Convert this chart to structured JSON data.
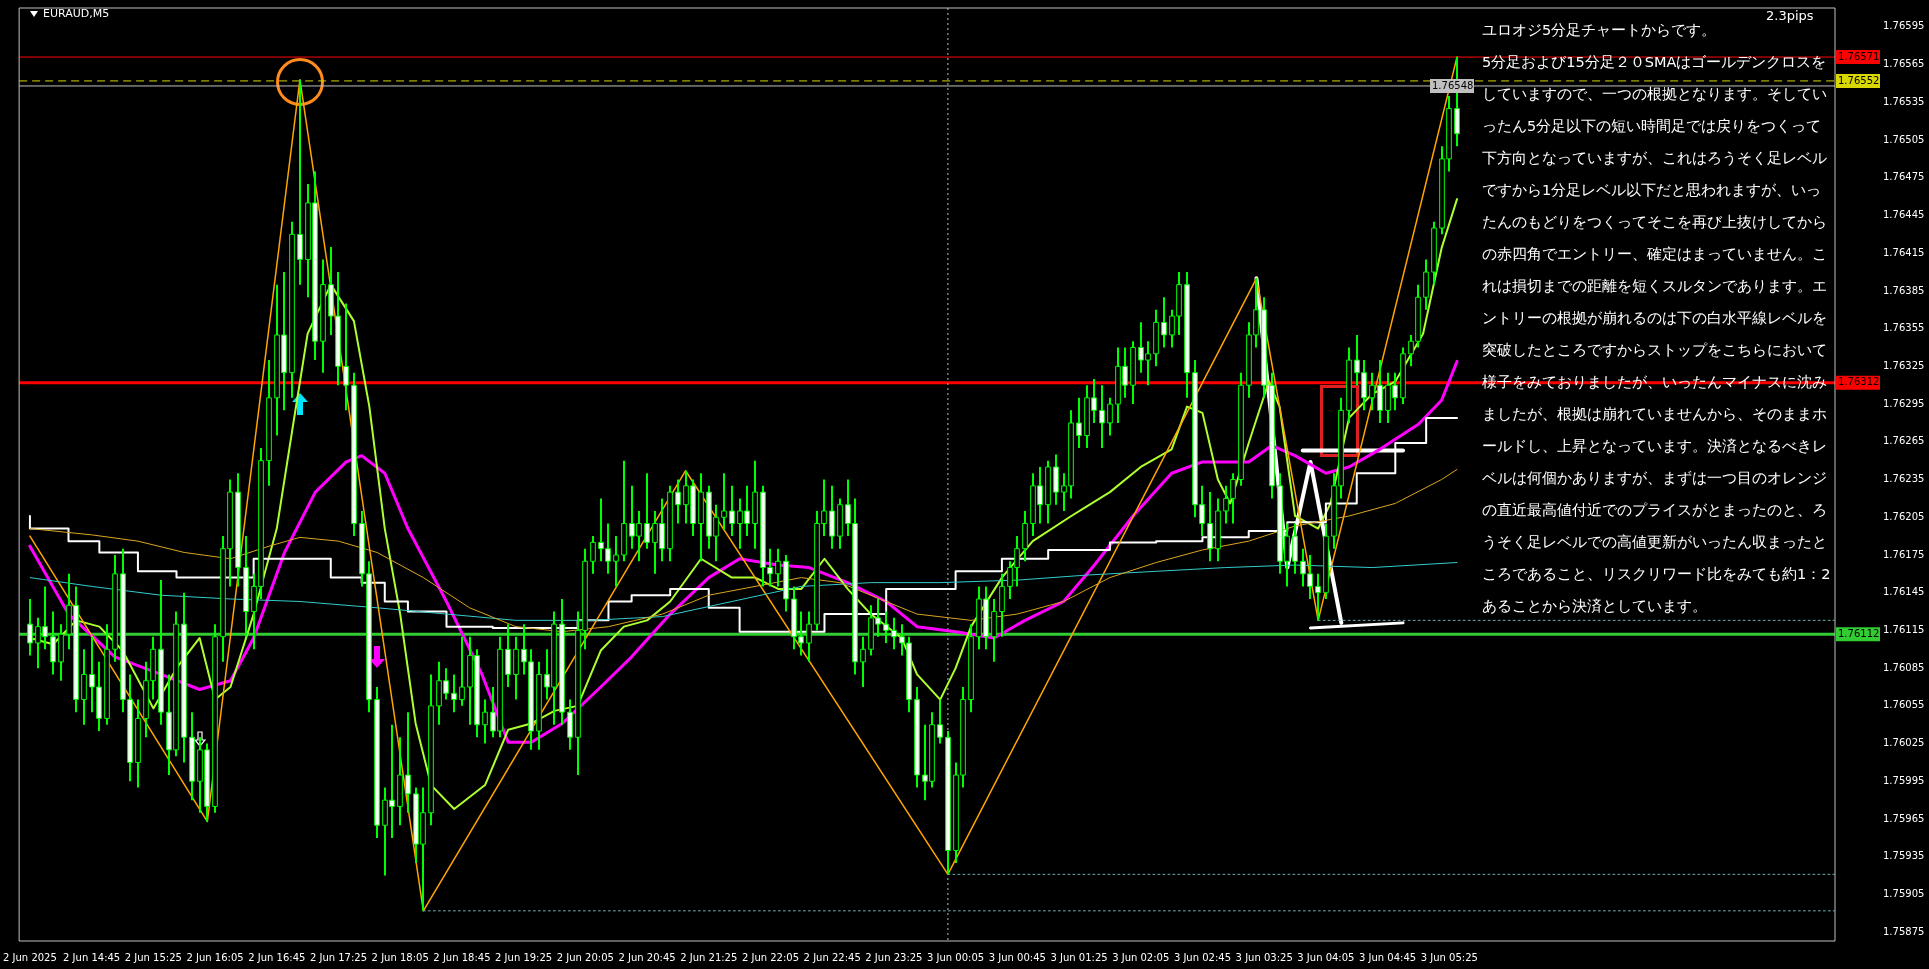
{
  "chart_data": {
    "type": "candlestick",
    "title": "EURAUD,M5",
    "annotations": [
      "2.3pips",
      "ユロオジ5分足チャートからです。",
      "5分足および15分足２０SMAはゴールデンクロスをしていますので、一つの根拠となります。そしていったん5分足以下の短い時間足では戻りをつくって下方向となっていますが、これはろうそく足レベルですから1分足レベル以下だと思われますが、いったんのもどりをつくってそこを再び上抜けしてからの赤四角でエントリー、確定はまっていません。これは損切までの距離を短くスルタンであります。エントリーの根拠が崩れるのは下の白水平線レベルを突破したところですからストップをこちらにおいて様子をみておりましたが、いったんマイナスに沈みましたが、根拠は崩れていませんから、そのままホールドし、上昇となっています。決済となるべきレベルは何個かありますが、まずは一つ目のオレンジの直近最高値付近でのプライスがとまったのと、ろうそく足レベルでの高値更新がいったん収まったところであること、リスクリワード比をみても約1：2あることから決済としています。"
    ],
    "xlim": [
      "2025-06-02T13:58",
      "2025-06-03T09:35"
    ],
    "ylim": [
      1.75868,
      1.7661
    ],
    "xticks": [
      {
        "value": "2025-06-02T14:05",
        "label": "2 Jun 2025"
      },
      {
        "value": "2025-06-02T14:45",
        "label": "2 Jun 14:45"
      },
      {
        "value": "2025-06-02T15:25",
        "label": "2 Jun 15:25"
      },
      {
        "value": "2025-06-02T16:05",
        "label": "2 Jun 16:05"
      },
      {
        "value": "2025-06-02T16:45",
        "label": "2 Jun 16:45"
      },
      {
        "value": "2025-06-02T17:25",
        "label": "2 Jun 17:25"
      },
      {
        "value": "2025-06-02T18:05",
        "label": "2 Jun 18:05"
      },
      {
        "value": "2025-06-02T18:45",
        "label": "2 Jun 18:45"
      },
      {
        "value": "2025-06-02T19:25",
        "label": "2 Jun 19:25"
      },
      {
        "value": "2025-06-02T20:05",
        "label": "2 Jun 20:05"
      },
      {
        "value": "2025-06-02T20:45",
        "label": "2 Jun 20:45"
      },
      {
        "value": "2025-06-02T21:25",
        "label": "2 Jun 21:25"
      },
      {
        "value": "2025-06-02T22:05",
        "label": "2 Jun 22:05"
      },
      {
        "value": "2025-06-02T22:45",
        "label": "2 Jun 22:45"
      },
      {
        "value": "2025-06-02T23:25",
        "label": "2 Jun 23:25"
      },
      {
        "value": "2025-06-03T00:05",
        "label": "3 Jun 00:05"
      },
      {
        "value": "2025-06-03T00:45",
        "label": "3 Jun 00:45"
      },
      {
        "value": "2025-06-03T01:25",
        "label": "3 Jun 01:25"
      },
      {
        "value": "2025-06-03T02:05",
        "label": "3 Jun 02:05"
      },
      {
        "value": "2025-06-03T02:45",
        "label": "3 Jun 02:45"
      },
      {
        "value": "2025-06-03T03:25",
        "label": "3 Jun 03:25"
      },
      {
        "value": "2025-06-03T04:05",
        "label": "3 Jun 04:05"
      },
      {
        "value": "2025-06-03T04:45",
        "label": "3 Jun 04:45"
      },
      {
        "value": "2025-06-03T05:25",
        "label": "3 Jun 05:25"
      }
    ],
    "yticks": [
      1.75875,
      1.75905,
      1.75935,
      1.75965,
      1.75995,
      1.76025,
      1.76055,
      1.76085,
      1.76115,
      1.76145,
      1.76175,
      1.76205,
      1.76235,
      1.76265,
      1.76295,
      1.76325,
      1.76355,
      1.76385,
      1.76415,
      1.76445,
      1.76475,
      1.76505,
      1.76535,
      1.76565,
      1.76595
    ],
    "ref_lines": [
      {
        "axis": "y",
        "value": 1.76571,
        "label": "1.76571",
        "color": "#ff0000",
        "line_style": "solid"
      },
      {
        "axis": "y",
        "value": 1.76552,
        "label": "1.76552",
        "color": "#d8d800",
        "line_style": "dashed"
      },
      {
        "axis": "y",
        "value": 1.76548,
        "label": "1.76548",
        "color": "#c0c0c0",
        "line_style": "solid"
      },
      {
        "axis": "y",
        "value": 1.76312,
        "label": "1.76312",
        "color": "#ff0000",
        "line_style": "solid"
      },
      {
        "axis": "y",
        "value": 1.76112,
        "label": "1.76112",
        "color": "#32cd32",
        "line_style": "solid"
      },
      {
        "axis": "x",
        "value": "2025-06-03T00:00",
        "color": "#c0c0c0",
        "line_style": "dotted"
      }
    ],
    "x": [
      "2025-06-02T14:05",
      "2025-06-02T14:10",
      "2025-06-02T14:15",
      "2025-06-02T14:20",
      "2025-06-02T14:25",
      "2025-06-02T14:30",
      "2025-06-02T14:35",
      "2025-06-02T14:40",
      "2025-06-02T14:45",
      "2025-06-02T14:50",
      "2025-06-02T14:55",
      "2025-06-02T15:00",
      "2025-06-02T15:05",
      "2025-06-02T15:10",
      "2025-06-02T15:15",
      "2025-06-02T15:20",
      "2025-06-02T15:25",
      "2025-06-02T15:30",
      "2025-06-02T15:35",
      "2025-06-02T15:40",
      "2025-06-02T15:45",
      "2025-06-02T15:50",
      "2025-06-02T15:55",
      "2025-06-02T16:00",
      "2025-06-02T16:05",
      "2025-06-02T16:10",
      "2025-06-02T16:15",
      "2025-06-02T16:20",
      "2025-06-02T16:25",
      "2025-06-02T16:30",
      "2025-06-02T16:35",
      "2025-06-02T16:40",
      "2025-06-02T16:45",
      "2025-06-02T16:50",
      "2025-06-02T16:55",
      "2025-06-02T17:00",
      "2025-06-02T17:05",
      "2025-06-02T17:10",
      "2025-06-02T17:15",
      "2025-06-02T17:20",
      "2025-06-02T17:25",
      "2025-06-02T17:30",
      "2025-06-02T17:35",
      "2025-06-02T17:40",
      "2025-06-02T17:45",
      "2025-06-02T17:50",
      "2025-06-02T17:55",
      "2025-06-02T18:00",
      "2025-06-02T18:05",
      "2025-06-02T18:10",
      "2025-06-02T18:15",
      "2025-06-02T18:20",
      "2025-06-02T18:25",
      "2025-06-02T18:30",
      "2025-06-02T18:35",
      "2025-06-02T18:40",
      "2025-06-02T18:45",
      "2025-06-02T18:50",
      "2025-06-02T18:55",
      "2025-06-02T19:00",
      "2025-06-02T19:05",
      "2025-06-02T19:10",
      "2025-06-02T19:15",
      "2025-06-02T19:20",
      "2025-06-02T19:25",
      "2025-06-02T19:30",
      "2025-06-02T19:35",
      "2025-06-02T19:40",
      "2025-06-02T19:45",
      "2025-06-02T19:50",
      "2025-06-02T19:55",
      "2025-06-02T20:00",
      "2025-06-02T20:05",
      "2025-06-02T20:10",
      "2025-06-02T20:15",
      "2025-06-02T20:20",
      "2025-06-02T20:25",
      "2025-06-02T20:30",
      "2025-06-02T20:35",
      "2025-06-02T20:40",
      "2025-06-02T20:45",
      "2025-06-02T20:50",
      "2025-06-02T20:55",
      "2025-06-02T21:00",
      "2025-06-02T21:05",
      "2025-06-02T21:10",
      "2025-06-02T21:15",
      "2025-06-02T21:20",
      "2025-06-02T21:25",
      "2025-06-02T21:30",
      "2025-06-02T21:35",
      "2025-06-02T21:40",
      "2025-06-02T21:45",
      "2025-06-02T21:50",
      "2025-06-02T21:55",
      "2025-06-02T22:00",
      "2025-06-02T22:05",
      "2025-06-02T22:10",
      "2025-06-02T22:15",
      "2025-06-02T22:20",
      "2025-06-02T22:25",
      "2025-06-02T22:30",
      "2025-06-02T22:35",
      "2025-06-02T22:40",
      "2025-06-02T22:45",
      "2025-06-02T22:50",
      "2025-06-02T22:55",
      "2025-06-02T23:00",
      "2025-06-02T23:05",
      "2025-06-02T23:10",
      "2025-06-02T23:15",
      "2025-06-02T23:20",
      "2025-06-02T23:25",
      "2025-06-02T23:30",
      "2025-06-02T23:35",
      "2025-06-02T23:40",
      "2025-06-02T23:45",
      "2025-06-02T23:50",
      "2025-06-02T23:55",
      "2025-06-03T00:00",
      "2025-06-03T00:05",
      "2025-06-03T00:10",
      "2025-06-03T00:15",
      "2025-06-03T00:20",
      "2025-06-03T00:25",
      "2025-06-03T00:30",
      "2025-06-03T00:35",
      "2025-06-03T00:40",
      "2025-06-03T00:45",
      "2025-06-03T00:50",
      "2025-06-03T00:55",
      "2025-06-03T01:00",
      "2025-06-03T01:05",
      "2025-06-03T01:10",
      "2025-06-03T01:15",
      "2025-06-03T01:20",
      "2025-06-03T01:25",
      "2025-06-03T01:30",
      "2025-06-03T01:35",
      "2025-06-03T01:40",
      "2025-06-03T01:45",
      "2025-06-03T01:50",
      "2025-06-03T01:55",
      "2025-06-03T02:00",
      "2025-06-03T02:05",
      "2025-06-03T02:10",
      "2025-06-03T02:15",
      "2025-06-03T02:20",
      "2025-06-03T02:25",
      "2025-06-03T02:30",
      "2025-06-03T02:35",
      "2025-06-03T02:40",
      "2025-06-03T02:45",
      "2025-06-03T02:50",
      "2025-06-03T02:55",
      "2025-06-03T03:00",
      "2025-06-03T03:05",
      "2025-06-03T03:10",
      "2025-06-03T03:15",
      "2025-06-03T03:20",
      "2025-06-03T03:25",
      "2025-06-03T03:30",
      "2025-06-03T03:35",
      "2025-06-03T03:40",
      "2025-06-03T03:45",
      "2025-06-03T03:50",
      "2025-06-03T03:55",
      "2025-06-03T04:00",
      "2025-06-03T04:05",
      "2025-06-03T04:10",
      "2025-06-03T04:15",
      "2025-06-03T04:20",
      "2025-06-03T04:25",
      "2025-06-03T04:30",
      "2025-06-03T04:35",
      "2025-06-03T04:40",
      "2025-06-03T04:45",
      "2025-06-03T04:50",
      "2025-06-03T04:55",
      "2025-06-03T05:00",
      "2025-06-03T05:05",
      "2025-06-03T05:10",
      "2025-06-03T05:15",
      "2025-06-03T05:20",
      "2025-06-03T05:25",
      "2025-06-03T05:30"
    ],
    "ohlc": [
      [
        1.7612,
        1.7614,
        1.76095,
        1.76105
      ],
      [
        1.76105,
        1.76125,
        1.76085,
        1.76118
      ],
      [
        1.76118,
        1.7615,
        1.761,
        1.7611
      ],
      [
        1.7611,
        1.7613,
        1.7608,
        1.7609
      ],
      [
        1.7609,
        1.7612,
        1.76075,
        1.76112
      ],
      [
        1.76112,
        1.7616,
        1.761,
        1.76135
      ],
      [
        1.76135,
        1.7615,
        1.7605,
        1.7606
      ],
      [
        1.7606,
        1.761,
        1.7604,
        1.7608
      ],
      [
        1.7608,
        1.7611,
        1.7605,
        1.7607
      ],
      [
        1.7607,
        1.7609,
        1.76035,
        1.76045
      ],
      [
        1.76045,
        1.7612,
        1.7604,
        1.761
      ],
      [
        1.761,
        1.76175,
        1.7609,
        1.7616
      ],
      [
        1.7616,
        1.7618,
        1.7605,
        1.7606
      ],
      [
        1.7606,
        1.7608,
        1.75995,
        1.7601
      ],
      [
        1.7601,
        1.7606,
        1.7599,
        1.76045
      ],
      [
        1.76045,
        1.7609,
        1.7603,
        1.76075
      ],
      [
        1.76075,
        1.7611,
        1.7606,
        1.761
      ],
      [
        1.761,
        1.76155,
        1.7604,
        1.7605
      ],
      [
        1.7605,
        1.7608,
        1.76,
        1.7602
      ],
      [
        1.7602,
        1.7613,
        1.76015,
        1.7612
      ],
      [
        1.7612,
        1.76145,
        1.7601,
        1.7603
      ],
      [
        1.7603,
        1.7605,
        1.7598,
        1.75995
      ],
      [
        1.75995,
        1.7603,
        1.7597,
        1.7602
      ],
      [
        1.7602,
        1.76025,
        1.75963,
        1.75975
      ],
      [
        1.75975,
        1.7612,
        1.7597,
        1.7611
      ],
      [
        1.7611,
        1.7619,
        1.7609,
        1.7618
      ],
      [
        1.7618,
        1.76235,
        1.7615,
        1.76225
      ],
      [
        1.76225,
        1.7624,
        1.7615,
        1.76165
      ],
      [
        1.76165,
        1.7619,
        1.7611,
        1.7613
      ],
      [
        1.7613,
        1.7616,
        1.761,
        1.7615
      ],
      [
        1.7615,
        1.7626,
        1.7614,
        1.7625
      ],
      [
        1.7625,
        1.7633,
        1.7623,
        1.763
      ],
      [
        1.763,
        1.7639,
        1.7627,
        1.7635
      ],
      [
        1.7635,
        1.764,
        1.7629,
        1.7632
      ],
      [
        1.7632,
        1.7644,
        1.763,
        1.7643
      ],
      [
        1.7643,
        1.76553,
        1.7639,
        1.7641
      ],
      [
        1.7641,
        1.7647,
        1.7638,
        1.76455
      ],
      [
        1.76455,
        1.7648,
        1.7633,
        1.76345
      ],
      [
        1.76345,
        1.7641,
        1.7632,
        1.7639
      ],
      [
        1.7639,
        1.7642,
        1.7635,
        1.76365
      ],
      [
        1.76365,
        1.764,
        1.7631,
        1.76325
      ],
      [
        1.76325,
        1.76375,
        1.7629,
        1.7631
      ],
      [
        1.7631,
        1.7632,
        1.7619,
        1.762
      ],
      [
        1.762,
        1.7621,
        1.7615,
        1.7616
      ],
      [
        1.7616,
        1.7617,
        1.7605,
        1.7606
      ],
      [
        1.7606,
        1.7607,
        1.7595,
        1.7596
      ],
      [
        1.7596,
        1.7599,
        1.7592,
        1.7598
      ],
      [
        1.7598,
        1.7604,
        1.7595,
        1.75975
      ],
      [
        1.75975,
        1.7603,
        1.7596,
        1.76
      ],
      [
        1.76,
        1.7605,
        1.7597,
        1.75985
      ],
      [
        1.75985,
        1.7599,
        1.7593,
        1.75945
      ],
      [
        1.75945,
        1.7599,
        1.75892,
        1.7597
      ],
      [
        1.7597,
        1.7608,
        1.7596,
        1.76055
      ],
      [
        1.76055,
        1.7609,
        1.7604,
        1.76075
      ],
      [
        1.76075,
        1.76085,
        1.7606,
        1.76065
      ],
      [
        1.76065,
        1.7608,
        1.7605,
        1.7606
      ],
      [
        1.7606,
        1.7611,
        1.76055,
        1.7607
      ],
      [
        1.7607,
        1.7611,
        1.7604,
        1.76095
      ],
      [
        1.76095,
        1.761,
        1.7603,
        1.7604
      ],
      [
        1.7604,
        1.7606,
        1.76025,
        1.7605
      ],
      [
        1.7605,
        1.7607,
        1.7603,
        1.76035
      ],
      [
        1.76035,
        1.7611,
        1.7603,
        1.761
      ],
      [
        1.761,
        1.7612,
        1.7607,
        1.7608
      ],
      [
        1.7608,
        1.7611,
        1.7606,
        1.761
      ],
      [
        1.761,
        1.7612,
        1.7608,
        1.7609
      ],
      [
        1.7609,
        1.761,
        1.7602,
        1.76035
      ],
      [
        1.76035,
        1.7609,
        1.7602,
        1.7608
      ],
      [
        1.7608,
        1.761,
        1.7606,
        1.7607
      ],
      [
        1.7607,
        1.7613,
        1.7604,
        1.7612
      ],
      [
        1.7612,
        1.7614,
        1.7604,
        1.7605
      ],
      [
        1.7605,
        1.7606,
        1.7602,
        1.7603
      ],
      [
        1.7603,
        1.7613,
        1.76,
        1.76115
      ],
      [
        1.76115,
        1.7618,
        1.761,
        1.7617
      ],
      [
        1.7617,
        1.7619,
        1.7616,
        1.76185
      ],
      [
        1.76185,
        1.7622,
        1.7617,
        1.7618
      ],
      [
        1.7618,
        1.762,
        1.7616,
        1.7617
      ],
      [
        1.7617,
        1.7619,
        1.7615,
        1.76175
      ],
      [
        1.76175,
        1.7625,
        1.7617,
        1.762
      ],
      [
        1.762,
        1.7623,
        1.7618,
        1.7619
      ],
      [
        1.7619,
        1.7621,
        1.7617,
        1.762
      ],
      [
        1.762,
        1.7624,
        1.7618,
        1.76185
      ],
      [
        1.76185,
        1.7621,
        1.7616,
        1.762
      ],
      [
        1.762,
        1.7622,
        1.7617,
        1.7618
      ],
      [
        1.7618,
        1.7623,
        1.7617,
        1.76225
      ],
      [
        1.76225,
        1.76235,
        1.762,
        1.76215
      ],
      [
        1.76215,
        1.76242,
        1.762,
        1.7623
      ],
      [
        1.7623,
        1.76235,
        1.7619,
        1.762
      ],
      [
        1.762,
        1.7624,
        1.7617,
        1.76225
      ],
      [
        1.76225,
        1.7623,
        1.7618,
        1.7619
      ],
      [
        1.7619,
        1.76215,
        1.7617,
        1.76205
      ],
      [
        1.76205,
        1.7624,
        1.76195,
        1.7621
      ],
      [
        1.7621,
        1.7623,
        1.7619,
        1.762
      ],
      [
        1.762,
        1.7622,
        1.7618,
        1.7621
      ],
      [
        1.7621,
        1.7623,
        1.7619,
        1.762
      ],
      [
        1.762,
        1.7625,
        1.7618,
        1.76225
      ],
      [
        1.76225,
        1.7623,
        1.7615,
        1.76165
      ],
      [
        1.76165,
        1.7618,
        1.7615,
        1.7616
      ],
      [
        1.7616,
        1.7618,
        1.7615,
        1.7617
      ],
      [
        1.7617,
        1.76175,
        1.7613,
        1.7614
      ],
      [
        1.7614,
        1.7615,
        1.761,
        1.7611
      ],
      [
        1.7611,
        1.7613,
        1.76095,
        1.76105
      ],
      [
        1.76105,
        1.7613,
        1.7609,
        1.7612
      ],
      [
        1.7612,
        1.7621,
        1.76115,
        1.762
      ],
      [
        1.762,
        1.76235,
        1.7619,
        1.7621
      ],
      [
        1.7621,
        1.7623,
        1.7618,
        1.7619
      ],
      [
        1.7619,
        1.7622,
        1.7618,
        1.76215
      ],
      [
        1.76215,
        1.76235,
        1.7619,
        1.762
      ],
      [
        1.762,
        1.7622,
        1.7608,
        1.7609
      ],
      [
        1.7609,
        1.7611,
        1.7607,
        1.761
      ],
      [
        1.761,
        1.76135,
        1.76095,
        1.76125
      ],
      [
        1.76125,
        1.7614,
        1.7611,
        1.7612
      ],
      [
        1.7612,
        1.7613,
        1.76105,
        1.76115
      ],
      [
        1.76115,
        1.76125,
        1.761,
        1.7611
      ],
      [
        1.7611,
        1.7612,
        1.76095,
        1.76105
      ],
      [
        1.76105,
        1.7611,
        1.7605,
        1.7606
      ],
      [
        1.7606,
        1.7607,
        1.7599,
        1.76
      ],
      [
        1.76,
        1.7604,
        1.7598,
        1.75995
      ],
      [
        1.75995,
        1.7605,
        1.7599,
        1.7604
      ],
      [
        1.7604,
        1.7606,
        1.76025,
        1.7603
      ],
      [
        1.7603,
        1.76035,
        1.75921,
        1.7594
      ],
      [
        1.7594,
        1.7601,
        1.7593,
        1.76
      ],
      [
        1.76,
        1.7607,
        1.7599,
        1.7606
      ],
      [
        1.7606,
        1.7612,
        1.7605,
        1.7611
      ],
      [
        1.7611,
        1.7615,
        1.761,
        1.7614
      ],
      [
        1.7614,
        1.7615,
        1.761,
        1.7611
      ],
      [
        1.7611,
        1.7614,
        1.7609,
        1.7613
      ],
      [
        1.7613,
        1.7616,
        1.7611,
        1.7615
      ],
      [
        1.7615,
        1.7617,
        1.7614,
        1.76165
      ],
      [
        1.76165,
        1.7619,
        1.7615,
        1.7618
      ],
      [
        1.7618,
        1.7621,
        1.7617,
        1.762
      ],
      [
        1.762,
        1.7624,
        1.7619,
        1.7623
      ],
      [
        1.7623,
        1.76245,
        1.762,
        1.76215
      ],
      [
        1.76215,
        1.7625,
        1.762,
        1.76245
      ],
      [
        1.76245,
        1.76255,
        1.76215,
        1.76225
      ],
      [
        1.76225,
        1.7624,
        1.7621,
        1.7623
      ],
      [
        1.7623,
        1.7629,
        1.7622,
        1.7628
      ],
      [
        1.7628,
        1.763,
        1.7626,
        1.7627
      ],
      [
        1.7627,
        1.7631,
        1.7626,
        1.763
      ],
      [
        1.763,
        1.76315,
        1.7628,
        1.7629
      ],
      [
        1.7629,
        1.7631,
        1.7626,
        1.7628
      ],
      [
        1.7628,
        1.763,
        1.7627,
        1.76295
      ],
      [
        1.76295,
        1.7634,
        1.7628,
        1.76325
      ],
      [
        1.76325,
        1.7634,
        1.763,
        1.7631
      ],
      [
        1.7631,
        1.76345,
        1.76295,
        1.7634
      ],
      [
        1.7634,
        1.7636,
        1.7632,
        1.7633
      ],
      [
        1.7633,
        1.76345,
        1.7631,
        1.76335
      ],
      [
        1.76335,
        1.7637,
        1.76325,
        1.7636
      ],
      [
        1.7636,
        1.7638,
        1.7634,
        1.7635
      ],
      [
        1.7635,
        1.7637,
        1.7634,
        1.76365
      ],
      [
        1.76365,
        1.764,
        1.7635,
        1.7639
      ],
      [
        1.7639,
        1.764,
        1.763,
        1.7632
      ],
      [
        1.7632,
        1.7633,
        1.76205,
        1.76215
      ],
      [
        1.76215,
        1.7623,
        1.7619,
        1.762
      ],
      [
        1.762,
        1.76225,
        1.7617,
        1.7618
      ],
      [
        1.7618,
        1.7622,
        1.7617,
        1.7621
      ],
      [
        1.7621,
        1.7623,
        1.762,
        1.7622
      ],
      [
        1.7622,
        1.7624,
        1.762,
        1.76235
      ],
      [
        1.76235,
        1.7632,
        1.7623,
        1.7631
      ],
      [
        1.7631,
        1.7636,
        1.763,
        1.7635
      ],
      [
        1.7635,
        1.76395,
        1.7634,
        1.7637
      ],
      [
        1.7637,
        1.7638,
        1.763,
        1.7631
      ],
      [
        1.7631,
        1.7632,
        1.7622,
        1.7623
      ],
      [
        1.7623,
        1.7624,
        1.7616,
        1.7617
      ],
      [
        1.7617,
        1.762,
        1.7615,
        1.7619
      ],
      [
        1.7619,
        1.762,
        1.7616,
        1.7617
      ],
      [
        1.7617,
        1.7618,
        1.7615,
        1.7616
      ],
      [
        1.7616,
        1.76175,
        1.7614,
        1.7615
      ],
      [
        1.7615,
        1.7616,
        1.76123,
        1.76145
      ],
      [
        1.76145,
        1.762,
        1.7614,
        1.7619
      ],
      [
        1.7619,
        1.7624,
        1.7618,
        1.7623
      ],
      [
        1.7623,
        1.763,
        1.7622,
        1.7629
      ],
      [
        1.7629,
        1.7634,
        1.7628,
        1.7633
      ],
      [
        1.7633,
        1.7635,
        1.7631,
        1.7632
      ],
      [
        1.7632,
        1.7633,
        1.7629,
        1.763
      ],
      [
        1.763,
        1.7632,
        1.7629,
        1.7631
      ],
      [
        1.7631,
        1.7633,
        1.7628,
        1.7629
      ],
      [
        1.7629,
        1.7632,
        1.7628,
        1.7631
      ],
      [
        1.7631,
        1.7632,
        1.7629,
        1.763
      ],
      [
        1.763,
        1.7634,
        1.76295,
        1.76335
      ],
      [
        1.76335,
        1.7635,
        1.76325,
        1.76345
      ],
      [
        1.76345,
        1.7639,
        1.7634,
        1.7638
      ],
      [
        1.7638,
        1.7641,
        1.7637,
        1.764
      ],
      [
        1.764,
        1.7644,
        1.7639,
        1.76435
      ],
      [
        1.76435,
        1.765,
        1.7643,
        1.7649
      ],
      [
        1.7649,
        1.7654,
        1.7648,
        1.7653
      ],
      [
        1.7653,
        1.76571,
        1.765,
        1.7651
      ]
    ],
    "series": [
      {
        "type": "line",
        "color": "#ff00ff",
        "x": [
          "2025-06-02T14:05",
          "2025-06-02T14:30",
          "2025-06-02T15:00",
          "2025-06-02T15:30",
          "2025-06-02T15:55",
          "2025-06-02T16:15",
          "2025-06-02T16:30",
          "2025-06-02T16:50",
          "2025-06-02T17:10",
          "2025-06-02T17:30",
          "2025-06-02T17:40",
          "2025-06-02T17:55",
          "2025-06-02T18:10",
          "2025-06-02T18:35",
          "2025-06-02T18:58",
          "2025-06-02T19:15",
          "2025-06-02T19:30",
          "2025-06-02T19:50",
          "2025-06-02T20:15",
          "2025-06-02T20:35",
          "2025-06-02T21:00",
          "2025-06-02T21:25",
          "2025-06-02T21:45",
          "2025-06-02T22:10",
          "2025-06-02T22:30",
          "2025-06-02T22:55",
          "2025-06-02T23:20",
          "2025-06-02T23:40",
          "2025-06-03T00:05",
          "2025-06-03T00:30",
          "2025-06-03T00:50",
          "2025-06-03T01:15",
          "2025-06-03T01:35",
          "2025-06-03T02:00",
          "2025-06-03T02:25",
          "2025-06-03T02:45",
          "2025-06-03T03:15",
          "2025-06-03T03:30",
          "2025-06-03T03:45",
          "2025-06-03T04:05",
          "2025-06-03T04:20",
          "2025-06-03T04:40",
          "2025-06-03T05:05",
          "2025-06-03T05:20",
          "2025-06-03T05:30"
        ],
        "values": [
          1.76182,
          1.76128,
          1.76094,
          1.7608,
          1.76068,
          1.76075,
          1.76109,
          1.76177,
          1.76225,
          1.76249,
          1.76254,
          1.7624,
          1.76196,
          1.76138,
          1.7608,
          1.76026,
          1.76026,
          1.76041,
          1.7607,
          1.76094,
          1.76128,
          1.76157,
          1.76172,
          1.76167,
          1.76165,
          1.76153,
          1.76138,
          1.76118,
          1.76114,
          1.76109,
          1.76123,
          1.76138,
          1.76167,
          1.76206,
          1.7624,
          1.76249,
          1.76249,
          1.76262,
          1.76254,
          1.7624,
          1.76245,
          1.76259,
          1.76279,
          1.76298,
          1.76329
        ]
      },
      {
        "type": "step",
        "color": "#ffffff",
        "x": [
          "2025-06-02T14:05",
          "2025-06-02T14:30",
          "2025-06-02T14:50",
          "2025-06-02T15:15",
          "2025-06-02T15:40",
          "2025-06-02T16:00",
          "2025-06-02T16:30",
          "2025-06-02T16:55",
          "2025-06-02T17:20",
          "2025-06-02T17:40",
          "2025-06-02T17:55",
          "2025-06-02T18:10",
          "2025-06-02T18:35",
          "2025-06-02T19:05",
          "2025-06-02T19:35",
          "2025-06-02T20:00",
          "2025-06-02T20:20",
          "2025-06-02T20:35",
          "2025-06-02T21:00",
          "2025-06-02T21:25",
          "2025-06-02T21:45",
          "2025-06-02T22:10",
          "2025-06-02T22:40",
          "2025-06-02T22:55",
          "2025-06-02T23:20",
          "2025-06-02T23:40",
          "2025-06-03T00:05",
          "2025-06-03T00:35",
          "2025-06-03T01:05",
          "2025-06-03T01:45",
          "2025-06-03T02:15",
          "2025-06-03T02:45",
          "2025-06-03T03:15",
          "2025-06-03T03:40",
          "2025-06-03T04:05",
          "2025-06-03T04:25",
          "2025-06-03T04:50",
          "2025-06-03T05:10",
          "2025-06-03T05:30"
        ],
        "values": [
          1.76206,
          1.76196,
          1.76186,
          1.76177,
          1.76162,
          1.76157,
          1.76157,
          1.76172,
          1.76172,
          1.76157,
          1.76153,
          1.76138,
          1.7613,
          1.76118,
          1.76117,
          1.76117,
          1.76123,
          1.76138,
          1.76143,
          1.76148,
          1.76133,
          1.76114,
          1.76114,
          1.76128,
          1.76128,
          1.76148,
          1.76148,
          1.76162,
          1.76172,
          1.76179,
          1.76185,
          1.76186,
          1.76189,
          1.76194,
          1.76201,
          1.76216,
          1.7624,
          1.76264,
          1.76284
        ]
      },
      {
        "type": "line",
        "color": "#daa520",
        "x": [
          "2025-06-02T14:05",
          "2025-06-02T14:45",
          "2025-06-02T15:15",
          "2025-06-02T15:45",
          "2025-06-02T16:15",
          "2025-06-02T16:40",
          "2025-06-02T17:00",
          "2025-06-02T17:25",
          "2025-06-02T17:50",
          "2025-06-02T18:20",
          "2025-06-02T18:50",
          "2025-06-02T19:20",
          "2025-06-02T19:50",
          "2025-06-02T20:20",
          "2025-06-02T20:55",
          "2025-06-02T21:25",
          "2025-06-02T21:55",
          "2025-06-02T22:25",
          "2025-06-02T22:50",
          "2025-06-02T23:10",
          "2025-06-02T23:40",
          "2025-06-03T00:15",
          "2025-06-03T00:45",
          "2025-06-03T01:15",
          "2025-06-03T01:45",
          "2025-06-03T02:15",
          "2025-06-03T02:45",
          "2025-06-03T03:15",
          "2025-06-03T03:45",
          "2025-06-03T04:20",
          "2025-06-03T04:50",
          "2025-06-03T05:20",
          "2025-06-03T05:30"
        ],
        "values": [
          1.76196,
          1.76191,
          1.76186,
          1.76177,
          1.76172,
          1.76182,
          1.76189,
          1.76186,
          1.76177,
          1.76157,
          1.76133,
          1.76118,
          1.76114,
          1.76118,
          1.76128,
          1.76143,
          1.7615,
          1.76157,
          1.76153,
          1.76143,
          1.76128,
          1.76123,
          1.76128,
          1.76138,
          1.76157,
          1.76169,
          1.76179,
          1.76186,
          1.76198,
          1.76206,
          1.76216,
          1.76235,
          1.76243
        ]
      },
      {
        "type": "line",
        "color": "#33cccc",
        "x": [
          "2025-06-02T14:05",
          "2025-06-02T14:45",
          "2025-06-02T15:30",
          "2025-06-02T16:15",
          "2025-06-02T17:00",
          "2025-06-02T17:50",
          "2025-06-02T18:35",
          "2025-06-02T19:20",
          "2025-06-02T20:08",
          "2025-06-02T20:55",
          "2025-06-02T21:40",
          "2025-06-02T22:25",
          "2025-06-02T23:10",
          "2025-06-02T23:55",
          "2025-06-03T00:45",
          "2025-06-03T01:30",
          "2025-06-03T02:15",
          "2025-06-03T03:00",
          "2025-06-03T03:45",
          "2025-06-03T04:35",
          "2025-06-03T05:30"
        ],
        "values": [
          1.76157,
          1.7615,
          1.76143,
          1.7614,
          1.76138,
          1.76133,
          1.76128,
          1.76123,
          1.76123,
          1.76126,
          1.76138,
          1.7615,
          1.76153,
          1.76153,
          1.76155,
          1.76159,
          1.76162,
          1.76165,
          1.76167,
          1.76165,
          1.76169
        ]
      },
      {
        "type": "line",
        "color": "#adff2f",
        "x": [
          "2025-06-02T14:05",
          "2025-06-02T14:20",
          "2025-06-02T14:35",
          "2025-06-02T14:50",
          "2025-06-02T15:05",
          "2025-06-02T15:25",
          "2025-06-02T15:40",
          "2025-06-02T15:55",
          "2025-06-02T16:05",
          "2025-06-02T16:15",
          "2025-06-02T16:30",
          "2025-06-02T16:45",
          "2025-06-02T16:55",
          "2025-06-02T17:05",
          "2025-06-02T17:20",
          "2025-06-02T17:35",
          "2025-06-02T17:45",
          "2025-06-02T17:55",
          "2025-06-02T18:05",
          "2025-06-02T18:15",
          "2025-06-02T18:25",
          "2025-06-02T18:40",
          "2025-06-02T19:00",
          "2025-06-02T19:15",
          "2025-06-02T19:30",
          "2025-06-02T19:45",
          "2025-06-02T20:00",
          "2025-06-02T20:15",
          "2025-06-02T20:30",
          "2025-06-02T20:45",
          "2025-06-02T21:00",
          "2025-06-02T21:20",
          "2025-06-02T21:40",
          "2025-06-02T21:55",
          "2025-06-02T22:10",
          "2025-06-02T22:25",
          "2025-06-02T22:40",
          "2025-06-02T22:55",
          "2025-06-02T23:10",
          "2025-06-02T23:30",
          "2025-06-02T23:40",
          "2025-06-02T23:55",
          "2025-06-03T00:05",
          "2025-06-03T00:15",
          "2025-06-03T00:35",
          "2025-06-03T00:55",
          "2025-06-03T01:20",
          "2025-06-03T01:45",
          "2025-06-03T02:05",
          "2025-06-03T02:25",
          "2025-06-03T02:35",
          "2025-06-03T02:45",
          "2025-06-03T02:55",
          "2025-06-03T03:03",
          "2025-06-03T03:15",
          "2025-06-03T03:28",
          "2025-06-03T03:35",
          "2025-06-03T03:45",
          "2025-06-03T04:00",
          "2025-06-03T04:08",
          "2025-06-03T04:20",
          "2025-06-03T04:35",
          "2025-06-03T04:50",
          "2025-06-03T05:08",
          "2025-06-03T05:20",
          "2025-06-03T05:30"
        ],
        "values": [
          1.76109,
          1.76104,
          1.76123,
          1.76118,
          1.76099,
          1.76053,
          1.76085,
          1.76109,
          1.7606,
          1.7607,
          1.76128,
          1.76196,
          1.76274,
          1.76351,
          1.7639,
          1.76361,
          1.76293,
          1.76196,
          1.76128,
          1.76041,
          1.75992,
          1.75973,
          1.75992,
          1.76036,
          1.76041,
          1.76051,
          1.76055,
          1.76099,
          1.76118,
          1.76123,
          1.76138,
          1.76172,
          1.76157,
          1.76157,
          1.76148,
          1.76148,
          1.76172,
          1.76148,
          1.76128,
          1.76109,
          1.7608,
          1.7606,
          1.76085,
          1.76118,
          1.76157,
          1.76186,
          1.76206,
          1.76225,
          1.76245,
          1.76259,
          1.76293,
          1.76288,
          1.76235,
          1.76216,
          1.76264,
          1.76313,
          1.76293,
          1.76206,
          1.76196,
          1.76216,
          1.76284,
          1.76303,
          1.76313,
          1.76351,
          1.76419,
          1.76458
        ]
      },
      {
        "type": "line",
        "color": "#ffa500",
        "x": [
          "2025-06-02T14:05",
          "2025-06-02T16:00",
          "2025-06-02T17:00",
          "2025-06-02T18:20",
          "2025-06-02T21:10",
          "2025-06-03T00:00",
          "2025-06-03T03:20",
          "2025-06-03T04:00",
          "2025-06-03T05:30"
        ],
        "values": [
          1.7619,
          1.75963,
          1.76553,
          1.75892,
          1.76242,
          1.75921,
          1.76395,
          1.76123,
          1.76571
        ]
      },
      {
        "type": "line",
        "color": "#ffffff",
        "x": [
          "2025-06-03T03:20",
          "2025-06-03T03:40",
          "2025-06-03T03:55",
          "2025-06-03T04:15"
        ],
        "values": [
          1.76395,
          1.76165,
          1.76249,
          1.76121
        ]
      },
      {
        "type": "line",
        "color": "#ffffff",
        "x": [
          "2025-06-03T03:50",
          "2025-06-03T04:55"
        ],
        "values": [
          1.76258,
          1.76258
        ]
      },
      {
        "type": "line",
        "color": "#ffffff",
        "x": [
          "2025-06-03T03:55",
          "2025-06-03T04:55"
        ],
        "values": [
          1.76117,
          1.76121
        ]
      },
      {
        "type": "line",
        "color": "#6fa8a8",
        "line_style": "dotted",
        "x": [
          "2025-06-02T18:20",
          "2025-06-03T09:35"
        ],
        "values": [
          1.75892,
          1.75892
        ]
      },
      {
        "type": "line",
        "color": "#6fa8a8",
        "line_style": "dotted",
        "x": [
          "2025-06-03T00:00",
          "2025-06-03T09:35"
        ],
        "values": [
          1.75921,
          1.75921
        ]
      },
      {
        "type": "line",
        "color": "#6fa8a8",
        "line_style": "dotted",
        "x": [
          "2025-06-03T04:00",
          "2025-06-03T09:35"
        ],
        "values": [
          1.76123,
          1.76123
        ]
      }
    ]
  }
}
